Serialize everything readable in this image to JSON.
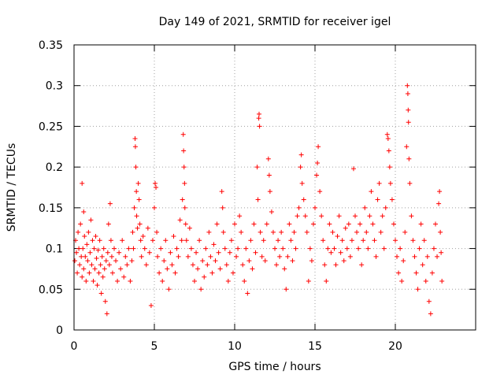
{
  "chart_data": {
    "type": "scatter",
    "title": "Day 149 of 2021, SRMTID for receiver igel",
    "xlabel": "GPS time / hours",
    "ylabel": "SRMTID / TECUs",
    "xlim": [
      0,
      25
    ],
    "ylim": [
      0,
      0.35
    ],
    "x_ticks": [
      {
        "value": 0,
        "label": "0"
      },
      {
        "value": 5,
        "label": "5"
      },
      {
        "value": 10,
        "label": "10"
      },
      {
        "value": 15,
        "label": "15"
      },
      {
        "value": 20,
        "label": "20"
      }
    ],
    "y_ticks": [
      {
        "value": 0,
        "label": "0"
      },
      {
        "value": 0.05,
        "label": "0.05"
      },
      {
        "value": 0.1,
        "label": "0.1"
      },
      {
        "value": 0.15,
        "label": "0.15"
      },
      {
        "value": 0.2,
        "label": "0.2"
      },
      {
        "value": 0.25,
        "label": "0.25"
      },
      {
        "value": 0.3,
        "label": "0.3"
      },
      {
        "value": 0.35,
        "label": "0.35"
      }
    ],
    "grid": true,
    "marker": "+",
    "marker_color": "#ff0000",
    "series": [
      {
        "name": "SRMTID",
        "points": [
          [
            0.05,
            0.085
          ],
          [
            0.1,
            0.11
          ],
          [
            0.15,
            0.095
          ],
          [
            0.2,
            0.07
          ],
          [
            0.25,
            0.12
          ],
          [
            0.3,
            0.1
          ],
          [
            0.35,
            0.08
          ],
          [
            0.4,
            0.13
          ],
          [
            0.45,
            0.09
          ],
          [
            0.5,
            0.065
          ],
          [
            0.55,
            0.1
          ],
          [
            0.6,
            0.075
          ],
          [
            0.65,
            0.115
          ],
          [
            0.7,
            0.09
          ],
          [
            0.75,
            0.06
          ],
          [
            0.8,
            0.105
          ],
          [
            0.85,
            0.085
          ],
          [
            0.9,
            0.12
          ],
          [
            0.95,
            0.07
          ],
          [
            1.0,
            0.095
          ],
          [
            1.05,
            0.135
          ],
          [
            1.1,
            0.08
          ],
          [
            1.15,
            0.11
          ],
          [
            1.2,
            0.06
          ],
          [
            1.25,
            0.1
          ],
          [
            1.3,
            0.075
          ],
          [
            1.35,
            0.115
          ],
          [
            1.4,
            0.088
          ],
          [
            1.45,
            0.055
          ],
          [
            1.5,
            0.098
          ],
          [
            1.55,
            0.07
          ],
          [
            1.6,
            0.11
          ],
          [
            1.65,
            0.08
          ],
          [
            1.7,
            0.045
          ],
          [
            1.75,
            0.09
          ],
          [
            1.8,
            0.065
          ],
          [
            1.85,
            0.1
          ],
          [
            1.9,
            0.075
          ],
          [
            1.95,
            0.035
          ],
          [
            2.0,
            0.085
          ],
          [
            0.5,
            0.18
          ],
          [
            0.6,
            0.145
          ],
          [
            2.05,
            0.02
          ],
          [
            2.1,
            0.095
          ],
          [
            2.15,
            0.13
          ],
          [
            2.2,
            0.08
          ],
          [
            2.25,
            0.155
          ],
          [
            2.3,
            0.11
          ],
          [
            2.35,
            0.09
          ],
          [
            2.4,
            0.07
          ],
          [
            2.5,
            0.1
          ],
          [
            2.6,
            0.085
          ],
          [
            2.7,
            0.06
          ],
          [
            2.8,
            0.095
          ],
          [
            2.9,
            0.075
          ],
          [
            3.0,
            0.11
          ],
          [
            3.1,
            0.065
          ],
          [
            3.2,
            0.09
          ],
          [
            3.3,
            0.08
          ],
          [
            3.4,
            0.1
          ],
          [
            3.5,
            0.06
          ],
          [
            3.6,
            0.085
          ],
          [
            3.65,
            0.12
          ],
          [
            3.7,
            0.1
          ],
          [
            3.75,
            0.15
          ],
          [
            3.8,
            0.235
          ],
          [
            3.82,
            0.225
          ],
          [
            3.85,
            0.2
          ],
          [
            3.88,
            0.17
          ],
          [
            3.9,
            0.14
          ],
          [
            3.95,
            0.125
          ],
          [
            4.0,
            0.18
          ],
          [
            4.05,
            0.16
          ],
          [
            4.1,
            0.13
          ],
          [
            4.15,
            0.11
          ],
          [
            4.2,
            0.09
          ],
          [
            4.3,
            0.115
          ],
          [
            4.4,
            0.1
          ],
          [
            4.5,
            0.08
          ],
          [
            4.6,
            0.125
          ],
          [
            4.7,
            0.095
          ],
          [
            4.8,
            0.03
          ],
          [
            4.9,
            0.11
          ],
          [
            5.0,
            0.15
          ],
          [
            5.05,
            0.18
          ],
          [
            5.1,
            0.175
          ],
          [
            5.15,
            0.12
          ],
          [
            5.2,
            0.09
          ],
          [
            5.3,
            0.07
          ],
          [
            5.4,
            0.1
          ],
          [
            5.5,
            0.06
          ],
          [
            5.6,
            0.085
          ],
          [
            5.7,
            0.11
          ],
          [
            5.8,
            0.075
          ],
          [
            5.9,
            0.05
          ],
          [
            6.0,
            0.095
          ],
          [
            6.1,
            0.08
          ],
          [
            6.2,
            0.115
          ],
          [
            6.3,
            0.07
          ],
          [
            6.4,
            0.1
          ],
          [
            6.5,
            0.09
          ],
          [
            6.6,
            0.135
          ],
          [
            6.7,
            0.11
          ],
          [
            6.75,
            0.16
          ],
          [
            6.8,
            0.24
          ],
          [
            6.82,
            0.22
          ],
          [
            6.85,
            0.2
          ],
          [
            6.88,
            0.18
          ],
          [
            6.9,
            0.15
          ],
          [
            6.95,
            0.13
          ],
          [
            7.0,
            0.11
          ],
          [
            7.1,
            0.09
          ],
          [
            7.2,
            0.125
          ],
          [
            7.3,
            0.1
          ],
          [
            7.4,
            0.08
          ],
          [
            7.5,
            0.06
          ],
          [
            7.6,
            0.095
          ],
          [
            7.7,
            0.075
          ],
          [
            7.8,
            0.11
          ],
          [
            7.9,
            0.05
          ],
          [
            8.0,
            0.085
          ],
          [
            8.1,
            0.065
          ],
          [
            8.2,
            0.1
          ],
          [
            8.3,
            0.08
          ],
          [
            8.4,
            0.12
          ],
          [
            8.5,
            0.09
          ],
          [
            8.6,
            0.07
          ],
          [
            8.7,
            0.105
          ],
          [
            8.8,
            0.085
          ],
          [
            8.9,
            0.13
          ],
          [
            9.0,
            0.095
          ],
          [
            9.1,
            0.075
          ],
          [
            9.2,
            0.17
          ],
          [
            9.25,
            0.15
          ],
          [
            9.3,
            0.12
          ],
          [
            9.4,
            0.1
          ],
          [
            9.5,
            0.08
          ],
          [
            9.6,
            0.06
          ],
          [
            9.7,
            0.095
          ],
          [
            9.8,
            0.11
          ],
          [
            9.9,
            0.07
          ],
          [
            10.0,
            0.13
          ],
          [
            10.1,
            0.09
          ],
          [
            10.2,
            0.1
          ],
          [
            10.3,
            0.14
          ],
          [
            10.4,
            0.12
          ],
          [
            10.5,
            0.08
          ],
          [
            10.6,
            0.06
          ],
          [
            10.7,
            0.1
          ],
          [
            10.8,
            0.045
          ],
          [
            10.9,
            0.085
          ],
          [
            11.0,
            0.11
          ],
          [
            11.1,
            0.075
          ],
          [
            11.2,
            0.13
          ],
          [
            11.3,
            0.095
          ],
          [
            11.4,
            0.2
          ],
          [
            11.45,
            0.16
          ],
          [
            11.5,
            0.26
          ],
          [
            11.52,
            0.265
          ],
          [
            11.55,
            0.25
          ],
          [
            11.6,
            0.12
          ],
          [
            11.7,
            0.09
          ],
          [
            11.8,
            0.11
          ],
          [
            11.9,
            0.085
          ],
          [
            12.0,
            0.13
          ],
          [
            12.1,
            0.21
          ],
          [
            12.15,
            0.19
          ],
          [
            12.2,
            0.17
          ],
          [
            12.3,
            0.145
          ],
          [
            12.4,
            0.12
          ],
          [
            12.5,
            0.1
          ],
          [
            12.6,
            0.08
          ],
          [
            12.7,
            0.11
          ],
          [
            12.8,
            0.09
          ],
          [
            12.9,
            0.12
          ],
          [
            13.0,
            0.1
          ],
          [
            13.1,
            0.075
          ],
          [
            13.2,
            0.05
          ],
          [
            13.3,
            0.09
          ],
          [
            13.4,
            0.13
          ],
          [
            13.5,
            0.11
          ],
          [
            13.6,
            0.085
          ],
          [
            13.7,
            0.12
          ],
          [
            13.8,
            0.1
          ],
          [
            13.9,
            0.14
          ],
          [
            14.0,
            0.15
          ],
          [
            14.1,
            0.2
          ],
          [
            14.15,
            0.215
          ],
          [
            14.2,
            0.18
          ],
          [
            14.3,
            0.16
          ],
          [
            14.4,
            0.14
          ],
          [
            14.5,
            0.12
          ],
          [
            14.6,
            0.06
          ],
          [
            14.7,
            0.1
          ],
          [
            14.8,
            0.085
          ],
          [
            14.9,
            0.13
          ],
          [
            15.0,
            0.15
          ],
          [
            15.1,
            0.19
          ],
          [
            15.15,
            0.205
          ],
          [
            15.2,
            0.225
          ],
          [
            15.3,
            0.17
          ],
          [
            15.4,
            0.14
          ],
          [
            15.5,
            0.11
          ],
          [
            15.6,
            0.08
          ],
          [
            15.7,
            0.06
          ],
          [
            15.8,
            0.1
          ],
          [
            15.9,
            0.13
          ],
          [
            16.0,
            0.095
          ],
          [
            16.1,
            0.12
          ],
          [
            16.2,
            0.1
          ],
          [
            16.3,
            0.08
          ],
          [
            16.4,
            0.115
          ],
          [
            16.5,
            0.14
          ],
          [
            16.6,
            0.095
          ],
          [
            16.7,
            0.11
          ],
          [
            16.8,
            0.085
          ],
          [
            16.9,
            0.125
          ],
          [
            17.0,
            0.1
          ],
          [
            17.1,
            0.13
          ],
          [
            17.2,
            0.09
          ],
          [
            17.3,
            0.11
          ],
          [
            17.4,
            0.198
          ],
          [
            17.5,
            0.14
          ],
          [
            17.6,
            0.12
          ],
          [
            17.7,
            0.1
          ],
          [
            17.8,
            0.13
          ],
          [
            17.9,
            0.08
          ],
          [
            18.0,
            0.11
          ],
          [
            18.1,
            0.15
          ],
          [
            18.2,
            0.12
          ],
          [
            18.3,
            0.1
          ],
          [
            18.4,
            0.14
          ],
          [
            18.5,
            0.17
          ],
          [
            18.6,
            0.13
          ],
          [
            18.7,
            0.11
          ],
          [
            18.8,
            0.09
          ],
          [
            18.9,
            0.16
          ],
          [
            19.0,
            0.18
          ],
          [
            19.1,
            0.12
          ],
          [
            19.2,
            0.14
          ],
          [
            19.3,
            0.1
          ],
          [
            19.4,
            0.15
          ],
          [
            19.5,
            0.24
          ],
          [
            19.55,
            0.235
          ],
          [
            19.6,
            0.22
          ],
          [
            19.65,
            0.2
          ],
          [
            19.7,
            0.18
          ],
          [
            19.8,
            0.16
          ],
          [
            19.9,
            0.13
          ],
          [
            20.0,
            0.11
          ],
          [
            20.1,
            0.09
          ],
          [
            20.2,
            0.07
          ],
          [
            20.3,
            0.1
          ],
          [
            20.4,
            0.06
          ],
          [
            20.5,
            0.085
          ],
          [
            20.6,
            0.12
          ],
          [
            20.7,
            0.225
          ],
          [
            20.75,
            0.3
          ],
          [
            20.78,
            0.29
          ],
          [
            20.8,
            0.27
          ],
          [
            20.82,
            0.255
          ],
          [
            20.85,
            0.21
          ],
          [
            20.9,
            0.18
          ],
          [
            21.0,
            0.14
          ],
          [
            21.1,
            0.11
          ],
          [
            21.2,
            0.09
          ],
          [
            21.3,
            0.07
          ],
          [
            21.4,
            0.05
          ],
          [
            21.5,
            0.1
          ],
          [
            21.6,
            0.13
          ],
          [
            21.7,
            0.08
          ],
          [
            21.8,
            0.11
          ],
          [
            21.9,
            0.06
          ],
          [
            22.0,
            0.09
          ],
          [
            22.1,
            0.035
          ],
          [
            22.2,
            0.02
          ],
          [
            22.3,
            0.07
          ],
          [
            22.4,
            0.1
          ],
          [
            22.5,
            0.13
          ],
          [
            22.6,
            0.09
          ],
          [
            22.7,
            0.155
          ],
          [
            22.75,
            0.17
          ],
          [
            22.8,
            0.12
          ],
          [
            22.85,
            0.095
          ],
          [
            22.9,
            0.06
          ]
        ]
      }
    ]
  }
}
